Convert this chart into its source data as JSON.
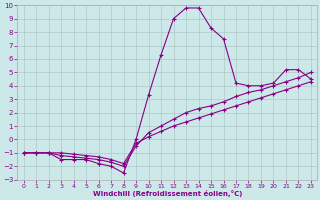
{
  "xlabel": "Windchill (Refroidissement éolien,°C)",
  "ylabel": "",
  "background_color": "#cce8e8",
  "line_color": "#880088",
  "xlim": [
    -0.5,
    23.5
  ],
  "ylim": [
    -3,
    10
  ],
  "xticks": [
    0,
    1,
    2,
    3,
    4,
    5,
    6,
    7,
    8,
    9,
    10,
    11,
    12,
    13,
    14,
    15,
    16,
    17,
    18,
    19,
    20,
    21,
    22,
    23
  ],
  "yticks": [
    -3,
    -2,
    -1,
    0,
    1,
    2,
    3,
    4,
    5,
    6,
    7,
    8,
    9,
    10
  ],
  "grid_color": "#b0c8c8",
  "line1_x": [
    0,
    1,
    2,
    3,
    4,
    5,
    6,
    7,
    8,
    9,
    10,
    11,
    12,
    13,
    14,
    15,
    16,
    17,
    18,
    19,
    20,
    21,
    22,
    23
  ],
  "line1_y": [
    -1,
    -1,
    -1,
    -1.5,
    -1.5,
    -1.5,
    -1.8,
    -2.0,
    -2.5,
    0.0,
    3.3,
    6.3,
    9.0,
    9.8,
    9.8,
    8.3,
    7.5,
    4.2,
    4.0,
    4.0,
    4.2,
    5.2,
    5.2,
    4.5
  ],
  "line2_x": [
    0,
    1,
    2,
    3,
    4,
    5,
    6,
    7,
    8,
    9,
    10,
    11,
    12,
    13,
    14,
    15,
    16,
    17,
    18,
    19,
    20,
    21,
    22,
    23
  ],
  "line2_y": [
    -1,
    -1,
    -1,
    -1.2,
    -1.3,
    -1.4,
    -1.5,
    -1.7,
    -2.0,
    -0.5,
    0.5,
    1.0,
    1.5,
    2.0,
    2.3,
    2.5,
    2.8,
    3.2,
    3.5,
    3.7,
    4.0,
    4.3,
    4.6,
    5.0
  ],
  "line3_x": [
    0,
    1,
    2,
    3,
    4,
    5,
    6,
    7,
    8,
    9,
    10,
    11,
    12,
    13,
    14,
    15,
    16,
    17,
    18,
    19,
    20,
    21,
    22,
    23
  ],
  "line3_y": [
    -1,
    -1,
    -1,
    -1.0,
    -1.1,
    -1.2,
    -1.3,
    -1.5,
    -1.8,
    -0.3,
    0.2,
    0.6,
    1.0,
    1.3,
    1.6,
    1.9,
    2.2,
    2.5,
    2.8,
    3.1,
    3.4,
    3.7,
    4.0,
    4.3
  ]
}
